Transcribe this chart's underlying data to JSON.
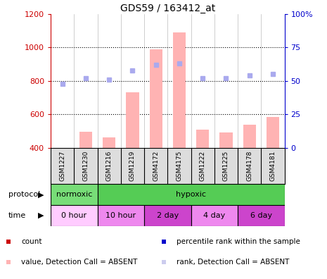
{
  "title": "GDS59 / 163412_at",
  "samples": [
    "GSM1227",
    "GSM1230",
    "GSM1216",
    "GSM1219",
    "GSM4172",
    "GSM4175",
    "GSM1222",
    "GSM1225",
    "GSM4178",
    "GSM4181"
  ],
  "bar_values": [
    400,
    497,
    462,
    730,
    990,
    1090,
    510,
    493,
    540,
    585
  ],
  "bar_base": 400,
  "rank_values": [
    48,
    52,
    51,
    58,
    62,
    63,
    52,
    52,
    54,
    55
  ],
  "ylim_left": [
    400,
    1200
  ],
  "ylim_right": [
    0,
    100
  ],
  "yticks_left": [
    400,
    600,
    800,
    1000,
    1200
  ],
  "yticks_right": [
    0,
    25,
    50,
    75,
    100
  ],
  "bar_color": "#ffb3b3",
  "rank_color": "#aaaaee",
  "protocol_groups": [
    {
      "label": "normoxic",
      "start": 0,
      "end": 2,
      "color": "#77dd77"
    },
    {
      "label": "hypoxic",
      "start": 2,
      "end": 10,
      "color": "#55cc55"
    }
  ],
  "time_groups": [
    {
      "label": "0 hour",
      "start": 0,
      "end": 2,
      "color": "#ffccff"
    },
    {
      "label": "10 hour",
      "start": 2,
      "end": 4,
      "color": "#ee88ee"
    },
    {
      "label": "2 day",
      "start": 4,
      "end": 6,
      "color": "#cc44cc"
    },
    {
      "label": "4 day",
      "start": 6,
      "end": 8,
      "color": "#ee88ee"
    },
    {
      "label": "6 day",
      "start": 8,
      "end": 10,
      "color": "#cc44cc"
    }
  ],
  "protocol_label": "protocol",
  "time_label": "time",
  "left_axis_color": "#cc0000",
  "right_axis_color": "#0000cc",
  "bg_color": "#ffffff",
  "sample_bg": "#dddddd",
  "legend_items": [
    {
      "marker": "s",
      "color": "#cc0000",
      "label": "count"
    },
    {
      "marker": "s",
      "color": "#0000cc",
      "label": "percentile rank within the sample"
    },
    {
      "marker": "s",
      "color": "#ffb3b3",
      "label": "value, Detection Call = ABSENT"
    },
    {
      "marker": "s",
      "color": "#ccccee",
      "label": "rank, Detection Call = ABSENT"
    }
  ]
}
